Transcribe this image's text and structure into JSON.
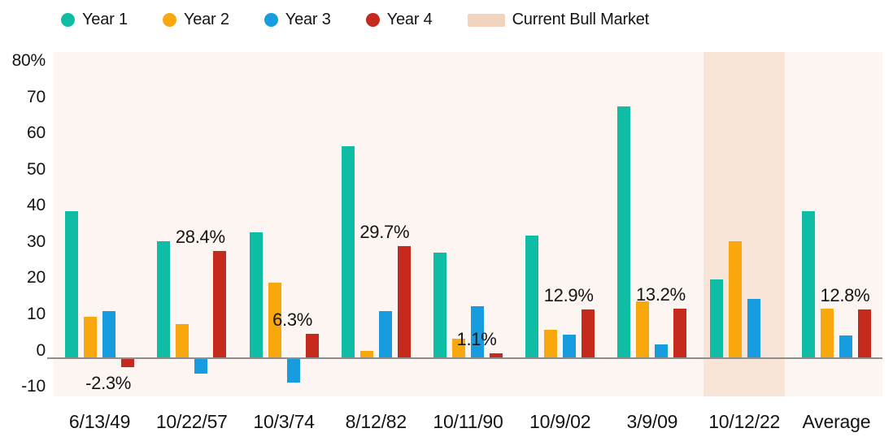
{
  "legend": {
    "items": [
      {
        "label": "Year 1",
        "color": "#0FBDA4",
        "marker": "dot"
      },
      {
        "label": "Year 2",
        "color": "#F8A80C",
        "marker": "dot"
      },
      {
        "label": "Year 3",
        "color": "#189CE0",
        "marker": "dot"
      },
      {
        "label": "Year 4",
        "color": "#C52A1D",
        "marker": "dot"
      },
      {
        "label": "Current Bull Market",
        "color": "#F2D3BE",
        "marker": "swatch"
      }
    ]
  },
  "chart_data": {
    "type": "bar",
    "categories": [
      "6/13/49",
      "10/22/57",
      "10/3/74",
      "8/12/82",
      "10/11/90",
      "10/9/02",
      "3/9/09",
      "10/12/22",
      "Average"
    ],
    "series": [
      {
        "name": "Year 1",
        "color": "#0FBDA4",
        "values": [
          39,
          31,
          33.5,
          56.5,
          28,
          32.5,
          67,
          21,
          39
        ]
      },
      {
        "name": "Year 2",
        "color": "#F8A80C",
        "values": [
          11,
          9,
          20,
          1.8,
          5,
          7.5,
          15,
          31,
          13.2
        ]
      },
      {
        "name": "Year 3",
        "color": "#189CE0",
        "values": [
          12.5,
          -4,
          -6.3,
          12.5,
          13.8,
          6.2,
          3.5,
          15.8,
          5.9
        ]
      },
      {
        "name": "Year 4",
        "color": "#C52A1D",
        "values": [
          -2.3,
          28.4,
          6.3,
          29.7,
          1.1,
          12.9,
          13.2,
          null,
          12.8
        ]
      }
    ],
    "annotations": [
      {
        "category_index": 0,
        "series": "Year 4",
        "text": "-2.3%"
      },
      {
        "category_index": 1,
        "series": "Year 4",
        "text": "28.4%"
      },
      {
        "category_index": 2,
        "series": "Year 4",
        "text": "6.3%"
      },
      {
        "category_index": 3,
        "series": "Year 4",
        "text": "29.7%"
      },
      {
        "category_index": 4,
        "series": "Year 4",
        "text": "1.1%"
      },
      {
        "category_index": 5,
        "series": "Year 4",
        "text": "12.9%"
      },
      {
        "category_index": 6,
        "series": "Year 4",
        "text": "13.2%"
      },
      {
        "category_index": 8,
        "series": "Year 4",
        "text": "12.8%"
      }
    ],
    "y_axis": {
      "min": -10,
      "max": 80,
      "tick_step": 10,
      "tick_labels": [
        "80%",
        "70",
        "60",
        "50",
        "40",
        "30",
        "20",
        "10",
        "0",
        "-10"
      ]
    },
    "highlight": {
      "category": "10/12/22",
      "label": "Current Bull Market",
      "band_color": "#F8E5D8"
    },
    "grid": false,
    "legend_position": "top",
    "plot_bg": "#FCF5F2",
    "axis_line_color": "#8E8E8E"
  }
}
